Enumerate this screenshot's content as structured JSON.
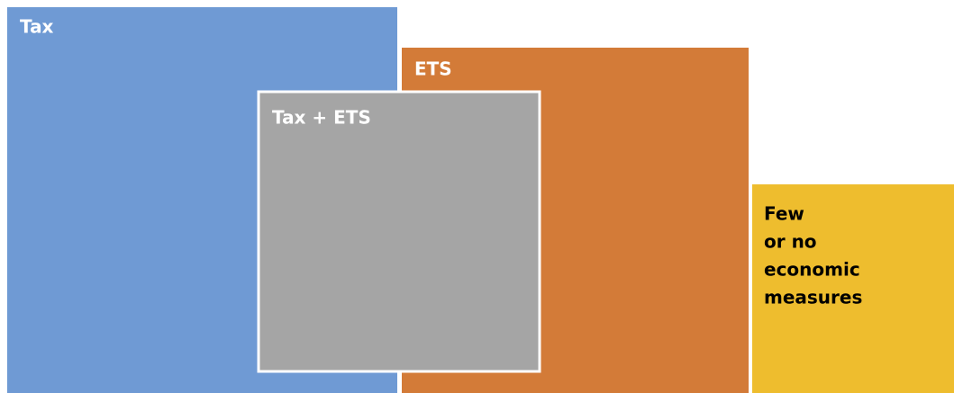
{
  "nodes": [
    {
      "label": "Tax"
    },
    {
      "label": "ETS"
    },
    {
      "label": "Tax + ETS"
    },
    {
      "lines": [
        "Few",
        "or no",
        "economic",
        "measures"
      ]
    }
  ]
}
